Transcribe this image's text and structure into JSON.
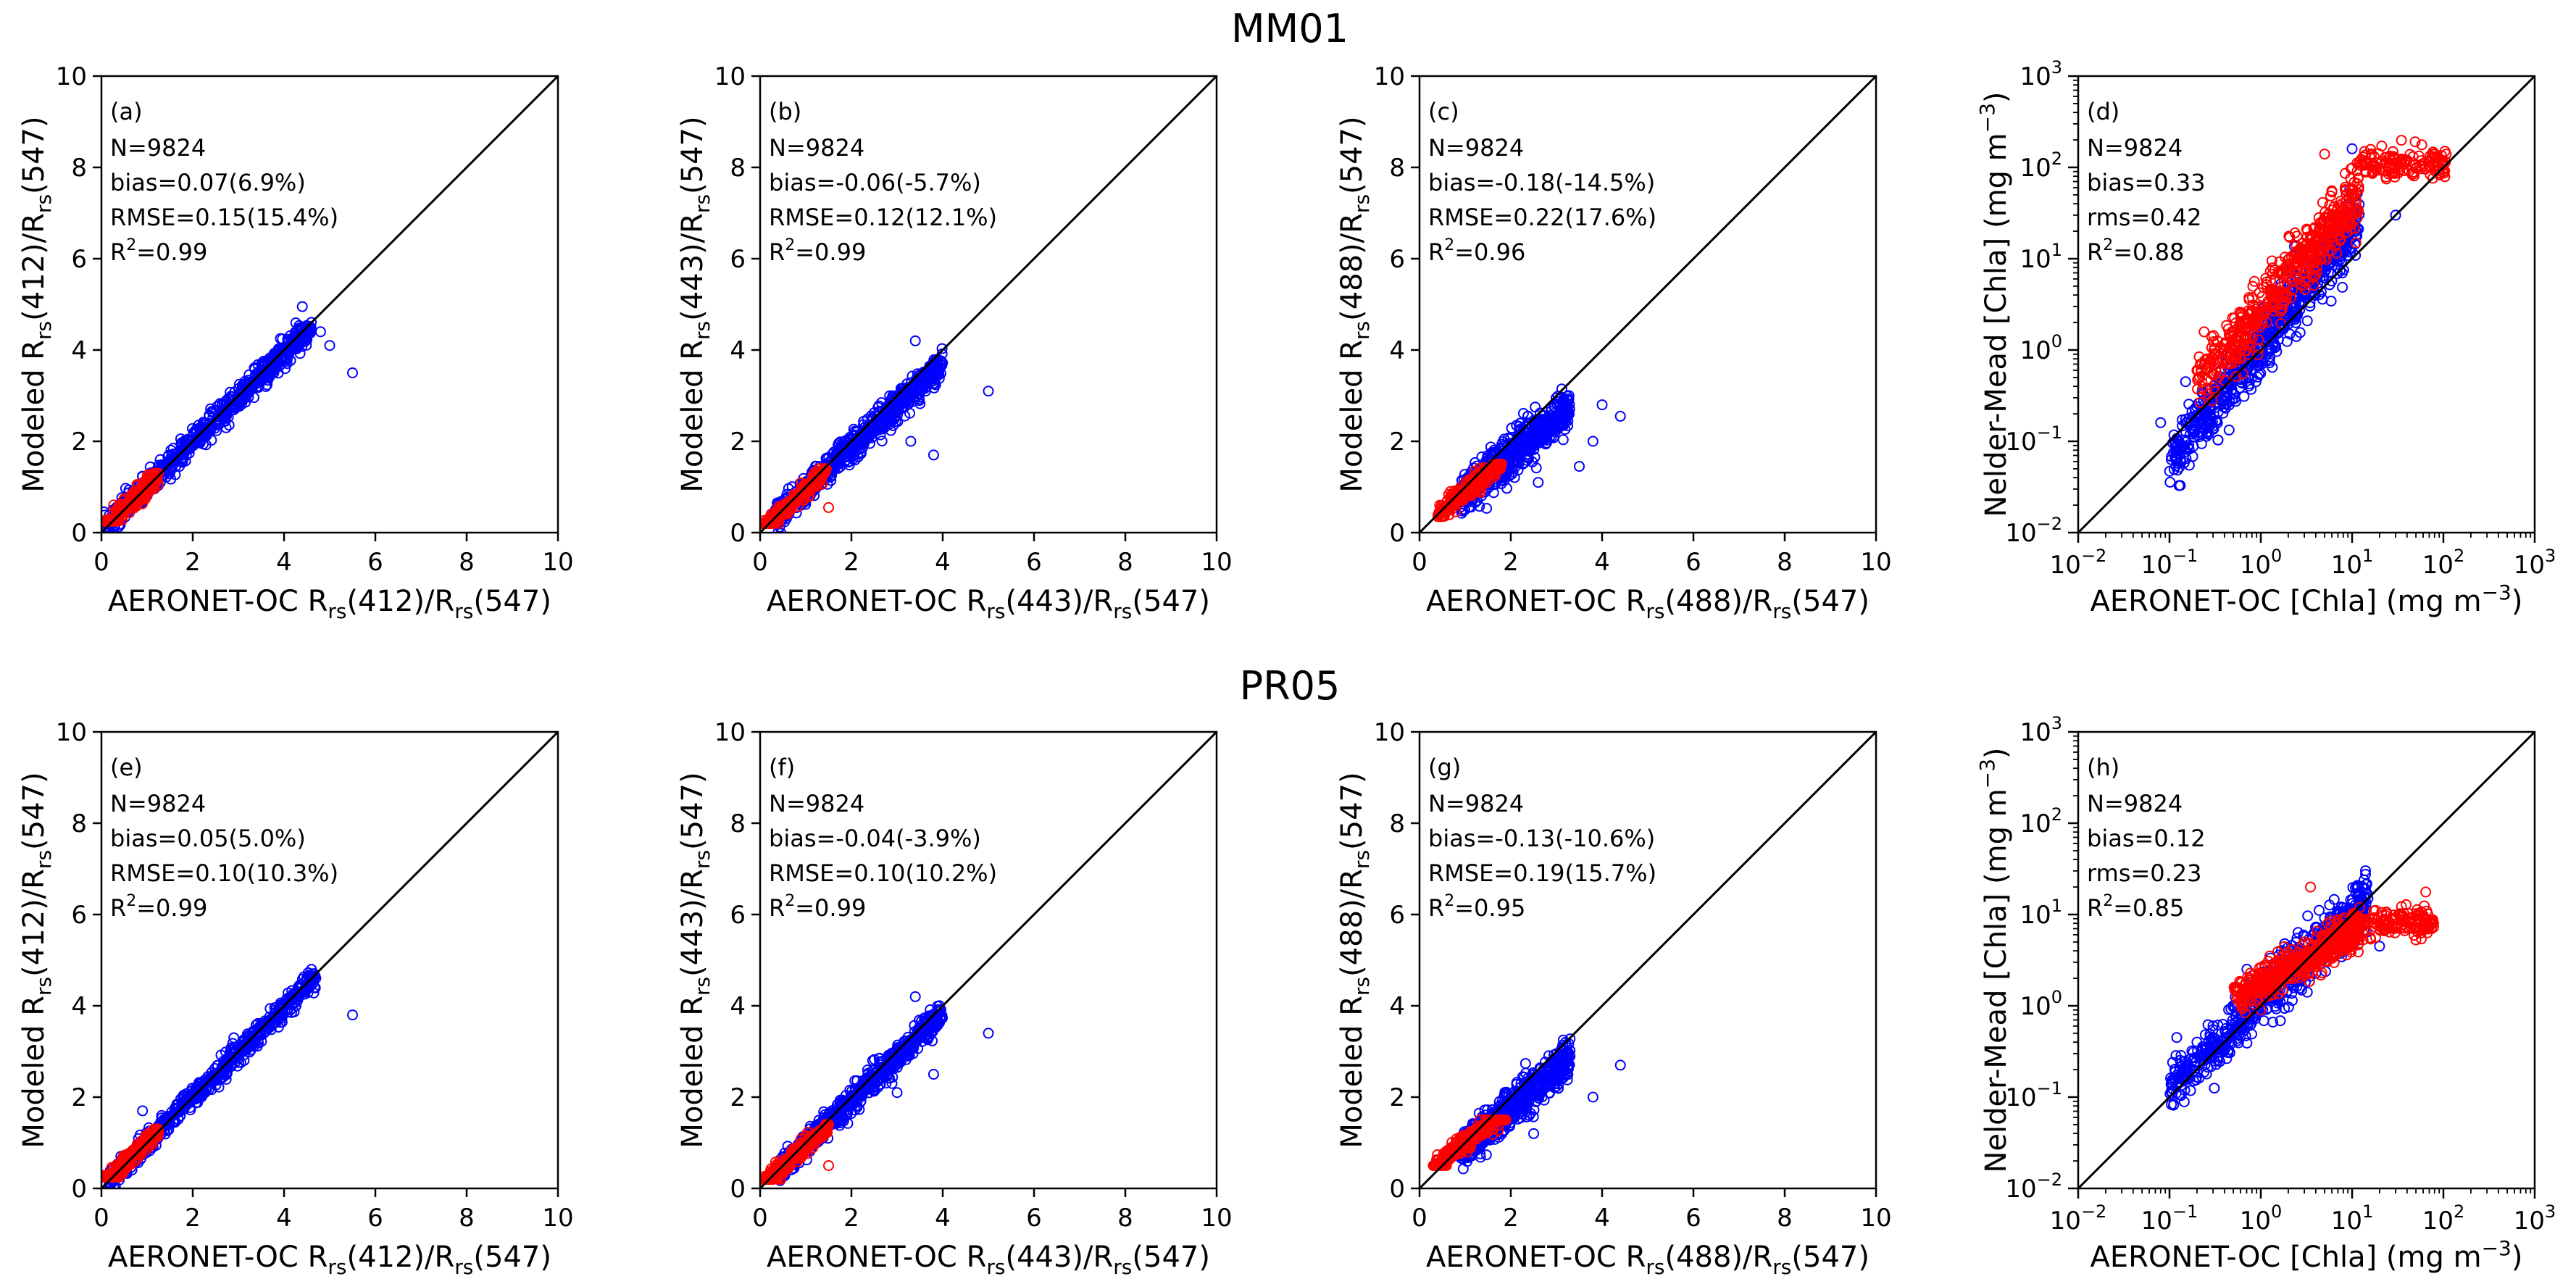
{
  "figure": {
    "row_titles": [
      "MM01",
      "PR05"
    ],
    "colors": {
      "modeled": "#0000ff",
      "other": "#ff0000",
      "one_to_one": "#000000"
    }
  },
  "chart_data": [
    {
      "type": "scatter",
      "scale": "linear",
      "row": 0,
      "col": 0,
      "panel": "(a)",
      "xlabel": {
        "pre": "AERONET-OC R",
        "sub": "rs",
        "post": "(412)/R",
        "sub2": "rs",
        "post2": "(547)"
      },
      "ylabel": {
        "pre": "Modeled R",
        "sub": "rs",
        "post": "(412)/R",
        "sub2": "rs",
        "post2": "(547)"
      },
      "xlim": [
        0,
        10
      ],
      "ylim": [
        0,
        10
      ],
      "ticks": [
        "0",
        "2",
        "4",
        "6",
        "8",
        "10"
      ],
      "stats": [
        "N=9824",
        "bias=0.07(6.9%)",
        "RMSE=0.15(15.4%)",
        "R2=0.99"
      ],
      "red_cloud": {
        "x_min": 0.05,
        "x_max": 1.25,
        "y_min": 0.25,
        "y_max": 1.3,
        "slope": 1.0,
        "offset": 0.02,
        "spread": 0.1,
        "outliers": []
      },
      "blue_cloud": {
        "x_min": 0.05,
        "x_max": 4.6,
        "slope": 0.98,
        "offset": 0.02,
        "spread": 0.14,
        "outliers": [
          [
            5.5,
            3.5
          ],
          [
            4.4,
            4.95
          ],
          [
            5.0,
            4.1
          ],
          [
            4.8,
            4.4
          ],
          [
            3.6,
            3.2
          ]
        ]
      }
    },
    {
      "type": "scatter",
      "scale": "linear",
      "row": 0,
      "col": 1,
      "panel": "(b)",
      "xlabel": {
        "pre": "AERONET-OC R",
        "sub": "rs",
        "post": "(443)/R",
        "sub2": "rs",
        "post2": "(547)"
      },
      "ylabel": {
        "pre": "Modeled R",
        "sub": "rs",
        "post": "(443)/R",
        "sub2": "rs",
        "post2": "(547)"
      },
      "xlim": [
        0,
        10
      ],
      "ylim": [
        0,
        10
      ],
      "ticks": [
        "0",
        "2",
        "4",
        "6",
        "8",
        "10"
      ],
      "stats": [
        "N=9824",
        "bias=-0.06(-5.7%)",
        "RMSE=0.12(12.1%)",
        "R2=0.99"
      ],
      "red_cloud": {
        "x_min": 0.05,
        "x_max": 1.45,
        "y_min": 0.2,
        "y_max": 1.4,
        "slope": 0.92,
        "offset": 0.02,
        "spread": 0.09,
        "outliers": [
          [
            1.5,
            0.55
          ]
        ]
      },
      "blue_cloud": {
        "x_min": 0.3,
        "x_max": 4.0,
        "slope": 0.92,
        "offset": 0.02,
        "spread": 0.16,
        "outliers": [
          [
            5.0,
            3.1
          ],
          [
            3.4,
            4.2
          ],
          [
            3.8,
            1.7
          ],
          [
            3.3,
            2.0
          ]
        ]
      }
    },
    {
      "type": "scatter",
      "scale": "linear",
      "row": 0,
      "col": 2,
      "panel": "(c)",
      "xlabel": {
        "pre": "AERONET-OC R",
        "sub": "rs",
        "post": "(488)/R",
        "sub2": "rs",
        "post2": "(547)"
      },
      "ylabel": {
        "pre": "Modeled R",
        "sub": "rs",
        "post": "(488)/R",
        "sub2": "rs",
        "post2": "(547)"
      },
      "xlim": [
        0,
        10
      ],
      "ylim": [
        0,
        10
      ],
      "ticks": [
        "0",
        "2",
        "4",
        "6",
        "8",
        "10"
      ],
      "stats": [
        "N=9824",
        "bias=-0.18(-14.5%)",
        "RMSE=0.22(17.6%)",
        "R2=0.96"
      ],
      "red_cloud": {
        "x_min": 0.4,
        "x_max": 1.8,
        "y_min": 0.35,
        "y_max": 1.5,
        "slope": 0.85,
        "offset": 0.05,
        "spread": 0.1,
        "outliers": []
      },
      "blue_cloud": {
        "x_min": 0.9,
        "x_max": 3.3,
        "slope": 0.8,
        "offset": 0.1,
        "spread": 0.22,
        "outliers": [
          [
            4.4,
            2.55
          ],
          [
            3.8,
            2.0
          ],
          [
            3.5,
            1.45
          ],
          [
            2.6,
            1.1
          ],
          [
            4.0,
            2.8
          ]
        ]
      }
    },
    {
      "type": "scatter",
      "scale": "log",
      "row": 0,
      "col": 3,
      "panel": "(d)",
      "xlabel": {
        "pre": "AERONET-OC [Chla] (mg m",
        "sup": "−3",
        "post": ")"
      },
      "ylabel": {
        "pre": "Nelder-Mead [Chla] (mg m",
        "sup": "−3",
        "post": ")"
      },
      "xlim_exp": [
        -2,
        3
      ],
      "ylim_exp": [
        -2,
        3
      ],
      "tick_labels": [
        [
          "10",
          "−2"
        ],
        [
          "10",
          "−1"
        ],
        [
          "10",
          "0"
        ],
        [
          "10",
          "1"
        ],
        [
          "10",
          "2"
        ],
        [
          "10",
          "3"
        ]
      ],
      "stats": [
        "N=9824",
        "bias=0.33",
        "rms=0.42",
        "R2=0.88"
      ],
      "blue_cloud": {
        "x_min": 0.1,
        "x_max": 12,
        "slope": 1.3,
        "offset": 0.05,
        "spread": 0.17,
        "outliers": [
          [
            0.08,
            0.16
          ],
          [
            10,
            160
          ],
          [
            0.15,
            0.45
          ],
          [
            30,
            30
          ]
        ]
      },
      "red_cloud": {
        "x_min": 0.2,
        "x_max": 12,
        "slope": 1.15,
        "offset": 0.45,
        "spread": 0.17,
        "plateau_x": [
          12,
          110
        ],
        "plateau_y": 110,
        "outliers": [
          [
            0.2,
            0.6
          ],
          [
            5,
            140
          ]
        ]
      }
    },
    {
      "type": "scatter",
      "scale": "linear",
      "row": 1,
      "col": 0,
      "panel": "(e)",
      "xlabel": {
        "pre": "AERONET-OC R",
        "sub": "rs",
        "post": "(412)/R",
        "sub2": "rs",
        "post2": "(547)"
      },
      "ylabel": {
        "pre": "Modeled R",
        "sub": "rs",
        "post": "(412)/R",
        "sub2": "rs",
        "post2": "(547)"
      },
      "xlim": [
        0,
        10
      ],
      "ylim": [
        0,
        10
      ],
      "ticks": [
        "0",
        "2",
        "4",
        "6",
        "8",
        "10"
      ],
      "stats": [
        "N=9824",
        "bias=0.05(5.0%)",
        "RMSE=0.10(10.3%)",
        "R2=0.99"
      ],
      "red_cloud": {
        "x_min": 0.05,
        "x_max": 1.25,
        "y_min": 0.25,
        "y_max": 1.3,
        "slope": 1.0,
        "offset": 0.02,
        "spread": 0.09,
        "outliers": []
      },
      "blue_cloud": {
        "x_min": 0.05,
        "x_max": 4.7,
        "slope": 0.98,
        "offset": 0.02,
        "spread": 0.12,
        "outliers": [
          [
            5.5,
            3.8
          ],
          [
            4.6,
            4.8
          ],
          [
            0.9,
            1.7
          ],
          [
            2.9,
            3.3
          ]
        ]
      }
    },
    {
      "type": "scatter",
      "scale": "linear",
      "row": 1,
      "col": 1,
      "panel": "(f)",
      "xlabel": {
        "pre": "AERONET-OC R",
        "sub": "rs",
        "post": "(443)/R",
        "sub2": "rs",
        "post2": "(547)"
      },
      "ylabel": {
        "pre": "Modeled R",
        "sub": "rs",
        "post": "(443)/R",
        "sub2": "rs",
        "post2": "(547)"
      },
      "xlim": [
        0,
        10
      ],
      "ylim": [
        0,
        10
      ],
      "ticks": [
        "0",
        "2",
        "4",
        "6",
        "8",
        "10"
      ],
      "stats": [
        "N=9824",
        "bias=-0.04(-3.9%)",
        "RMSE=0.10(10.2%)",
        "R2=0.99"
      ],
      "red_cloud": {
        "x_min": 0.05,
        "x_max": 1.5,
        "y_min": 0.2,
        "y_max": 1.4,
        "slope": 0.92,
        "offset": 0.02,
        "spread": 0.09,
        "outliers": [
          [
            1.5,
            0.5
          ]
        ]
      },
      "blue_cloud": {
        "x_min": 0.4,
        "x_max": 4.0,
        "slope": 0.95,
        "offset": 0.02,
        "spread": 0.14,
        "outliers": [
          [
            5.0,
            3.4
          ],
          [
            3.4,
            4.2
          ],
          [
            3.0,
            2.1
          ],
          [
            3.8,
            2.5
          ]
        ]
      }
    },
    {
      "type": "scatter",
      "scale": "linear",
      "row": 1,
      "col": 2,
      "panel": "(g)",
      "xlabel": {
        "pre": "AERONET-OC R",
        "sub": "rs",
        "post": "(488)/R",
        "sub2": "rs",
        "post2": "(547)"
      },
      "ylabel": {
        "pre": "Modeled R",
        "sub": "rs",
        "post": "(488)/R",
        "sub2": "rs",
        "post2": "(547)"
      },
      "xlim": [
        0,
        10
      ],
      "ylim": [
        0,
        10
      ],
      "ticks": [
        "0",
        "2",
        "4",
        "6",
        "8",
        "10"
      ],
      "stats": [
        "N=9824",
        "bias=-0.13(-10.6%)",
        "RMSE=0.19(15.7%)",
        "R2=0.95"
      ],
      "red_cloud": {
        "x_min": 0.3,
        "x_max": 1.9,
        "y_min": 0.5,
        "y_max": 1.5,
        "slope": 0.8,
        "offset": 0.2,
        "spread": 0.1,
        "outliers": []
      },
      "blue_cloud": {
        "x_min": 0.9,
        "x_max": 3.3,
        "slope": 0.85,
        "offset": 0.05,
        "spread": 0.2,
        "outliers": [
          [
            4.4,
            2.7
          ],
          [
            3.8,
            2.0
          ],
          [
            3.2,
            3.2
          ],
          [
            2.5,
            1.2
          ]
        ]
      }
    },
    {
      "type": "scatter",
      "scale": "log",
      "row": 1,
      "col": 3,
      "panel": "(h)",
      "xlabel": {
        "pre": "AERONET-OC [Chla] (mg m",
        "sup": "−3",
        "post": ")"
      },
      "ylabel": {
        "pre": "Nelder-Mead [Chla] (mg m",
        "sup": "−3",
        "post": ")"
      },
      "xlim_exp": [
        -2,
        3
      ],
      "ylim_exp": [
        -2,
        3
      ],
      "tick_labels": [
        [
          "10",
          "−2"
        ],
        [
          "10",
          "−1"
        ],
        [
          "10",
          "0"
        ],
        [
          "10",
          "1"
        ],
        [
          "10",
          "2"
        ],
        [
          "10",
          "3"
        ]
      ],
      "stats": [
        "N=9824",
        "bias=0.12",
        "rms=0.23",
        "R2=0.85"
      ],
      "blue_cloud": {
        "x_min": 0.1,
        "x_max": 15,
        "slope": 0.95,
        "offset": 0.05,
        "spread": 0.15,
        "outliers": [
          [
            0.12,
            0.45
          ],
          [
            0.2,
            0.4
          ],
          [
            20,
            4.5
          ]
        ]
      },
      "red_cloud": {
        "x_min": 0.5,
        "x_max": 12,
        "slope": 0.55,
        "offset": 0.25,
        "spread": 0.1,
        "plateau_x": [
          10,
          80
        ],
        "plateau_y": 8,
        "outliers": [
          [
            3.5,
            20
          ],
          [
            1.0,
            0.9
          ],
          [
            50,
            7
          ]
        ]
      }
    }
  ]
}
